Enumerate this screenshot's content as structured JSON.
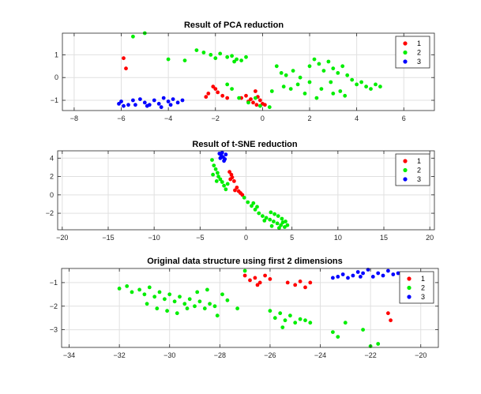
{
  "figure": {
    "background": "#ffffff"
  },
  "chart_data": [
    {
      "type": "scatter",
      "title": "Result of PCA reduction",
      "xlabel": "",
      "ylabel": "",
      "xlim": [
        -8.5,
        7.3
      ],
      "ylim": [
        -1.45,
        1.95
      ],
      "xticks": [
        -8,
        -6,
        -4,
        -2,
        0,
        2,
        4,
        6
      ],
      "yticks": [
        -1,
        0,
        1
      ],
      "grid": true,
      "legend_position": "top-right",
      "series": [
        {
          "name": "1",
          "color": "#ff0000",
          "points": [
            [
              -5.9,
              0.85
            ],
            [
              -5.8,
              0.4
            ],
            [
              -2.3,
              -0.7
            ],
            [
              -2.1,
              -0.4
            ],
            [
              -2.0,
              -0.5
            ],
            [
              -1.9,
              -0.65
            ],
            [
              -1.7,
              -0.8
            ],
            [
              -1.5,
              -0.9
            ],
            [
              -2.4,
              -0.85
            ],
            [
              -0.9,
              -0.9
            ],
            [
              -0.7,
              -0.8
            ],
            [
              -0.5,
              -0.95
            ],
            [
              -0.3,
              -0.6
            ],
            [
              -0.2,
              -0.85
            ],
            [
              -0.1,
              -1.0
            ],
            [
              0.0,
              -1.15
            ],
            [
              0.1,
              -1.2
            ],
            [
              -0.4,
              -1.1
            ],
            [
              -0.6,
              -1.05
            ],
            [
              -0.25,
              -1.2
            ]
          ]
        },
        {
          "name": "2",
          "color": "#00ee00",
          "points": [
            [
              -5.5,
              1.8
            ],
            [
              -5.0,
              1.95
            ],
            [
              -4.0,
              0.8
            ],
            [
              -3.3,
              0.75
            ],
            [
              -2.8,
              1.2
            ],
            [
              -2.5,
              1.1
            ],
            [
              -2.2,
              1.0
            ],
            [
              -2.0,
              0.85
            ],
            [
              -1.8,
              1.05
            ],
            [
              -1.5,
              0.9
            ],
            [
              -1.3,
              0.95
            ],
            [
              -1.1,
              0.8
            ],
            [
              -0.9,
              0.75
            ],
            [
              -0.7,
              0.9
            ],
            [
              -1.2,
              0.7
            ],
            [
              -1.5,
              -0.3
            ],
            [
              -1.3,
              -0.5
            ],
            [
              -1.0,
              -0.9
            ],
            [
              -0.6,
              -1.1
            ],
            [
              -0.3,
              -0.9
            ],
            [
              -0.1,
              -1.25
            ],
            [
              0.3,
              -1.3
            ],
            [
              0.4,
              -0.6
            ],
            [
              0.6,
              0.5
            ],
            [
              0.8,
              0.2
            ],
            [
              1.0,
              0.1
            ],
            [
              1.2,
              -0.5
            ],
            [
              1.5,
              -0.3
            ],
            [
              1.8,
              -0.7
            ],
            [
              2.0,
              0.5
            ],
            [
              2.2,
              0.8
            ],
            [
              2.4,
              0.6
            ],
            [
              2.6,
              0.3
            ],
            [
              2.8,
              0.7
            ],
            [
              3.0,
              0.4
            ],
            [
              3.2,
              0.2
            ],
            [
              3.4,
              0.5
            ],
            [
              3.6,
              0.1
            ],
            [
              3.8,
              -0.1
            ],
            [
              4.0,
              -0.3
            ],
            [
              4.2,
              -0.2
            ],
            [
              4.4,
              -0.4
            ],
            [
              4.6,
              -0.5
            ],
            [
              4.8,
              -0.3
            ],
            [
              5.0,
              -0.4
            ],
            [
              3.5,
              -0.8
            ],
            [
              3.0,
              -0.7
            ],
            [
              2.5,
              -0.5
            ],
            [
              2.0,
              -0.2
            ],
            [
              1.6,
              0.0
            ],
            [
              1.3,
              0.3
            ],
            [
              0.9,
              -0.4
            ],
            [
              2.3,
              -0.9
            ],
            [
              3.3,
              -0.6
            ],
            [
              2.9,
              -0.2
            ]
          ]
        },
        {
          "name": "3",
          "color": "#0000ff",
          "points": [
            [
              -6.1,
              -1.15
            ],
            [
              -5.9,
              -1.25
            ],
            [
              -5.7,
              -1.2
            ],
            [
              -5.5,
              -1.0
            ],
            [
              -5.2,
              -0.95
            ],
            [
              -5.0,
              -1.1
            ],
            [
              -4.8,
              -1.2
            ],
            [
              -4.6,
              -1.0
            ],
            [
              -4.4,
              -1.15
            ],
            [
              -4.2,
              -0.9
            ],
            [
              -4.0,
              -1.05
            ],
            [
              -3.8,
              -0.95
            ],
            [
              -3.6,
              -1.1
            ],
            [
              -3.4,
              -1.0
            ],
            [
              -4.3,
              -1.3
            ],
            [
              -4.9,
              -1.25
            ],
            [
              -3.9,
              -1.2
            ],
            [
              -5.4,
              -1.2
            ],
            [
              -6.0,
              -1.05
            ]
          ]
        }
      ]
    },
    {
      "type": "scatter",
      "title": "Result of t-SNE reduction",
      "xlabel": "",
      "ylabel": "",
      "xlim": [
        -20.5,
        20.5
      ],
      "ylim": [
        -3.8,
        4.8
      ],
      "xticks": [
        -20,
        -15,
        -10,
        -5,
        0,
        5,
        10,
        15,
        20
      ],
      "yticks": [
        -2,
        0,
        2,
        4
      ],
      "grid": true,
      "legend_position": "top-right",
      "series": [
        {
          "name": "1",
          "color": "#ff0000",
          "points": [
            [
              -1.8,
              2.5
            ],
            [
              -1.6,
              2.2
            ],
            [
              -1.5,
              1.9
            ],
            [
              -1.3,
              1.5
            ],
            [
              -1.0,
              0.8
            ],
            [
              -0.8,
              0.4
            ],
            [
              -0.6,
              0.2
            ],
            [
              -0.4,
              0.0
            ],
            [
              -1.7,
              1.7
            ],
            [
              -1.2,
              0.5
            ]
          ]
        },
        {
          "name": "2",
          "color": "#00ee00",
          "points": [
            [
              -3.7,
              3.8
            ],
            [
              -3.5,
              3.2
            ],
            [
              -3.3,
              2.8
            ],
            [
              -3.1,
              2.4
            ],
            [
              -3.0,
              2.0
            ],
            [
              -2.8,
              1.7
            ],
            [
              -2.6,
              1.4
            ],
            [
              -2.4,
              1.0
            ],
            [
              -2.2,
              0.6
            ],
            [
              -2.0,
              1.2
            ],
            [
              -3.2,
              1.5
            ],
            [
              -3.6,
              2.2
            ],
            [
              -0.2,
              -0.3
            ],
            [
              0.2,
              -0.8
            ],
            [
              0.6,
              -1.2
            ],
            [
              1.0,
              -1.6
            ],
            [
              1.4,
              -2.0
            ],
            [
              1.8,
              -2.3
            ],
            [
              2.2,
              -2.5
            ],
            [
              2.6,
              -2.7
            ],
            [
              3.0,
              -2.9
            ],
            [
              3.4,
              -3.1
            ],
            [
              3.8,
              -3.3
            ],
            [
              4.2,
              -3.5
            ],
            [
              4.5,
              -3.3
            ],
            [
              4.3,
              -2.9
            ],
            [
              3.9,
              -2.6
            ],
            [
              3.5,
              -2.3
            ],
            [
              3.1,
              -2.1
            ],
            [
              2.7,
              -1.9
            ],
            [
              2.0,
              -2.8
            ],
            [
              2.8,
              -3.4
            ],
            [
              3.6,
              -3.6
            ],
            [
              4.0,
              -3.0
            ],
            [
              1.2,
              -1.3
            ],
            [
              0.8,
              -0.9
            ]
          ]
        },
        {
          "name": "3",
          "color": "#0000ff",
          "points": [
            [
              -2.9,
              4.5
            ],
            [
              -2.7,
              4.3
            ],
            [
              -2.5,
              4.1
            ],
            [
              -2.3,
              3.9
            ],
            [
              -2.6,
              4.6
            ],
            [
              -2.2,
              4.4
            ],
            [
              -2.8,
              4.0
            ],
            [
              -2.4,
              3.7
            ]
          ]
        }
      ]
    },
    {
      "type": "scatter",
      "title": "Original data structure using first 2 dimensions",
      "xlabel": "",
      "ylabel": "",
      "xlim": [
        -34.3,
        -19.3
      ],
      "ylim": [
        -3.75,
        -0.4
      ],
      "xticks": [
        -34,
        -32,
        -30,
        -28,
        -26,
        -24,
        -22,
        -20
      ],
      "yticks": [
        -3,
        -2,
        -1
      ],
      "grid": true,
      "legend_position": "top-right",
      "series": [
        {
          "name": "1",
          "color": "#ff0000",
          "points": [
            [
              -27.0,
              -0.7
            ],
            [
              -26.8,
              -0.9
            ],
            [
              -26.6,
              -0.8
            ],
            [
              -26.4,
              -1.0
            ],
            [
              -26.2,
              -0.7
            ],
            [
              -26.0,
              -0.85
            ],
            [
              -25.0,
              -1.1
            ],
            [
              -24.8,
              -0.95
            ],
            [
              -24.6,
              -1.2
            ],
            [
              -24.4,
              -1.0
            ],
            [
              -25.3,
              -1.0
            ],
            [
              -21.3,
              -2.3
            ],
            [
              -21.2,
              -2.6
            ],
            [
              -26.5,
              -1.1
            ]
          ]
        },
        {
          "name": "2",
          "color": "#00ee00",
          "points": [
            [
              -32.0,
              -1.25
            ],
            [
              -31.7,
              -1.15
            ],
            [
              -31.5,
              -1.4
            ],
            [
              -31.2,
              -1.3
            ],
            [
              -31.0,
              -1.5
            ],
            [
              -30.8,
              -1.2
            ],
            [
              -30.6,
              -1.6
            ],
            [
              -30.4,
              -1.4
            ],
            [
              -30.2,
              -1.7
            ],
            [
              -30.0,
              -1.5
            ],
            [
              -29.8,
              -1.8
            ],
            [
              -29.6,
              -1.6
            ],
            [
              -29.4,
              -1.9
            ],
            [
              -29.2,
              -1.7
            ],
            [
              -29.0,
              -2.0
            ],
            [
              -28.8,
              -1.8
            ],
            [
              -28.6,
              -2.1
            ],
            [
              -28.4,
              -1.9
            ],
            [
              -28.2,
              -2.0
            ],
            [
              -30.9,
              -1.9
            ],
            [
              -30.5,
              -2.1
            ],
            [
              -30.1,
              -2.2
            ],
            [
              -29.7,
              -2.3
            ],
            [
              -29.3,
              -2.1
            ],
            [
              -28.9,
              -1.4
            ],
            [
              -28.5,
              -1.3
            ],
            [
              -27.9,
              -1.5
            ],
            [
              -27.7,
              -1.75
            ],
            [
              -27.0,
              -0.5
            ],
            [
              -26.0,
              -2.2
            ],
            [
              -25.8,
              -2.5
            ],
            [
              -25.6,
              -2.3
            ],
            [
              -25.4,
              -2.6
            ],
            [
              -25.2,
              -2.4
            ],
            [
              -25.0,
              -2.7
            ],
            [
              -24.8,
              -2.55
            ],
            [
              -24.6,
              -2.6
            ],
            [
              -24.4,
              -2.7
            ],
            [
              -25.5,
              -2.9
            ],
            [
              -23.5,
              -3.1
            ],
            [
              -23.3,
              -3.3
            ],
            [
              -22.0,
              -3.7
            ],
            [
              -21.7,
              -3.6
            ],
            [
              -23.0,
              -2.7
            ],
            [
              -22.3,
              -3.0
            ],
            [
              -28.1,
              -2.4
            ],
            [
              -27.3,
              -2.1
            ]
          ]
        },
        {
          "name": "3",
          "color": "#0000ff",
          "points": [
            [
              -23.3,
              -0.75
            ],
            [
              -23.1,
              -0.65
            ],
            [
              -22.9,
              -0.8
            ],
            [
              -22.7,
              -0.7
            ],
            [
              -22.5,
              -0.55
            ],
            [
              -22.3,
              -0.6
            ],
            [
              -22.1,
              -0.45
            ],
            [
              -21.9,
              -0.75
            ],
            [
              -21.7,
              -0.6
            ],
            [
              -21.5,
              -0.7
            ],
            [
              -21.3,
              -0.5
            ],
            [
              -21.1,
              -0.65
            ],
            [
              -20.9,
              -0.6
            ],
            [
              -22.4,
              -0.75
            ],
            [
              -23.5,
              -0.8
            ]
          ]
        }
      ]
    }
  ]
}
